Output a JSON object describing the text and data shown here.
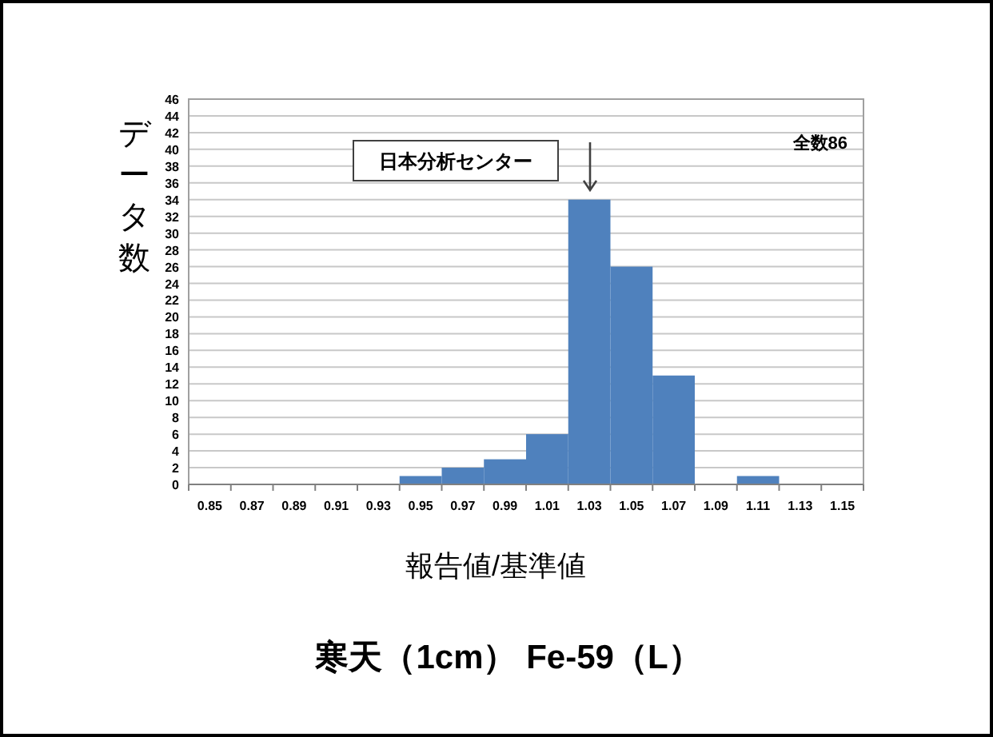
{
  "chart_data": {
    "type": "bar",
    "title": "寒天（1cm） Fe-59（L）",
    "xlabel": "報告値/基準値",
    "ylabel": "データ数",
    "categories": [
      "0.85",
      "0.87",
      "0.89",
      "0.91",
      "0.93",
      "0.95",
      "0.97",
      "0.99",
      "1.01",
      "1.03",
      "1.05",
      "1.07",
      "1.09",
      "1.11",
      "1.13",
      "1.15"
    ],
    "values": [
      0,
      0,
      0,
      0,
      0,
      1,
      2,
      3,
      6,
      34,
      26,
      13,
      0,
      1,
      0,
      0
    ],
    "color": "#4f81bd",
    "ylim": [
      0,
      46
    ],
    "yticks": [
      0,
      2,
      4,
      6,
      8,
      10,
      12,
      14,
      16,
      18,
      20,
      22,
      24,
      26,
      28,
      30,
      32,
      34,
      36,
      38,
      40,
      42,
      44,
      46
    ],
    "grid": "y",
    "annotations": [
      "日本分析センター",
      "全数86"
    ]
  }
}
